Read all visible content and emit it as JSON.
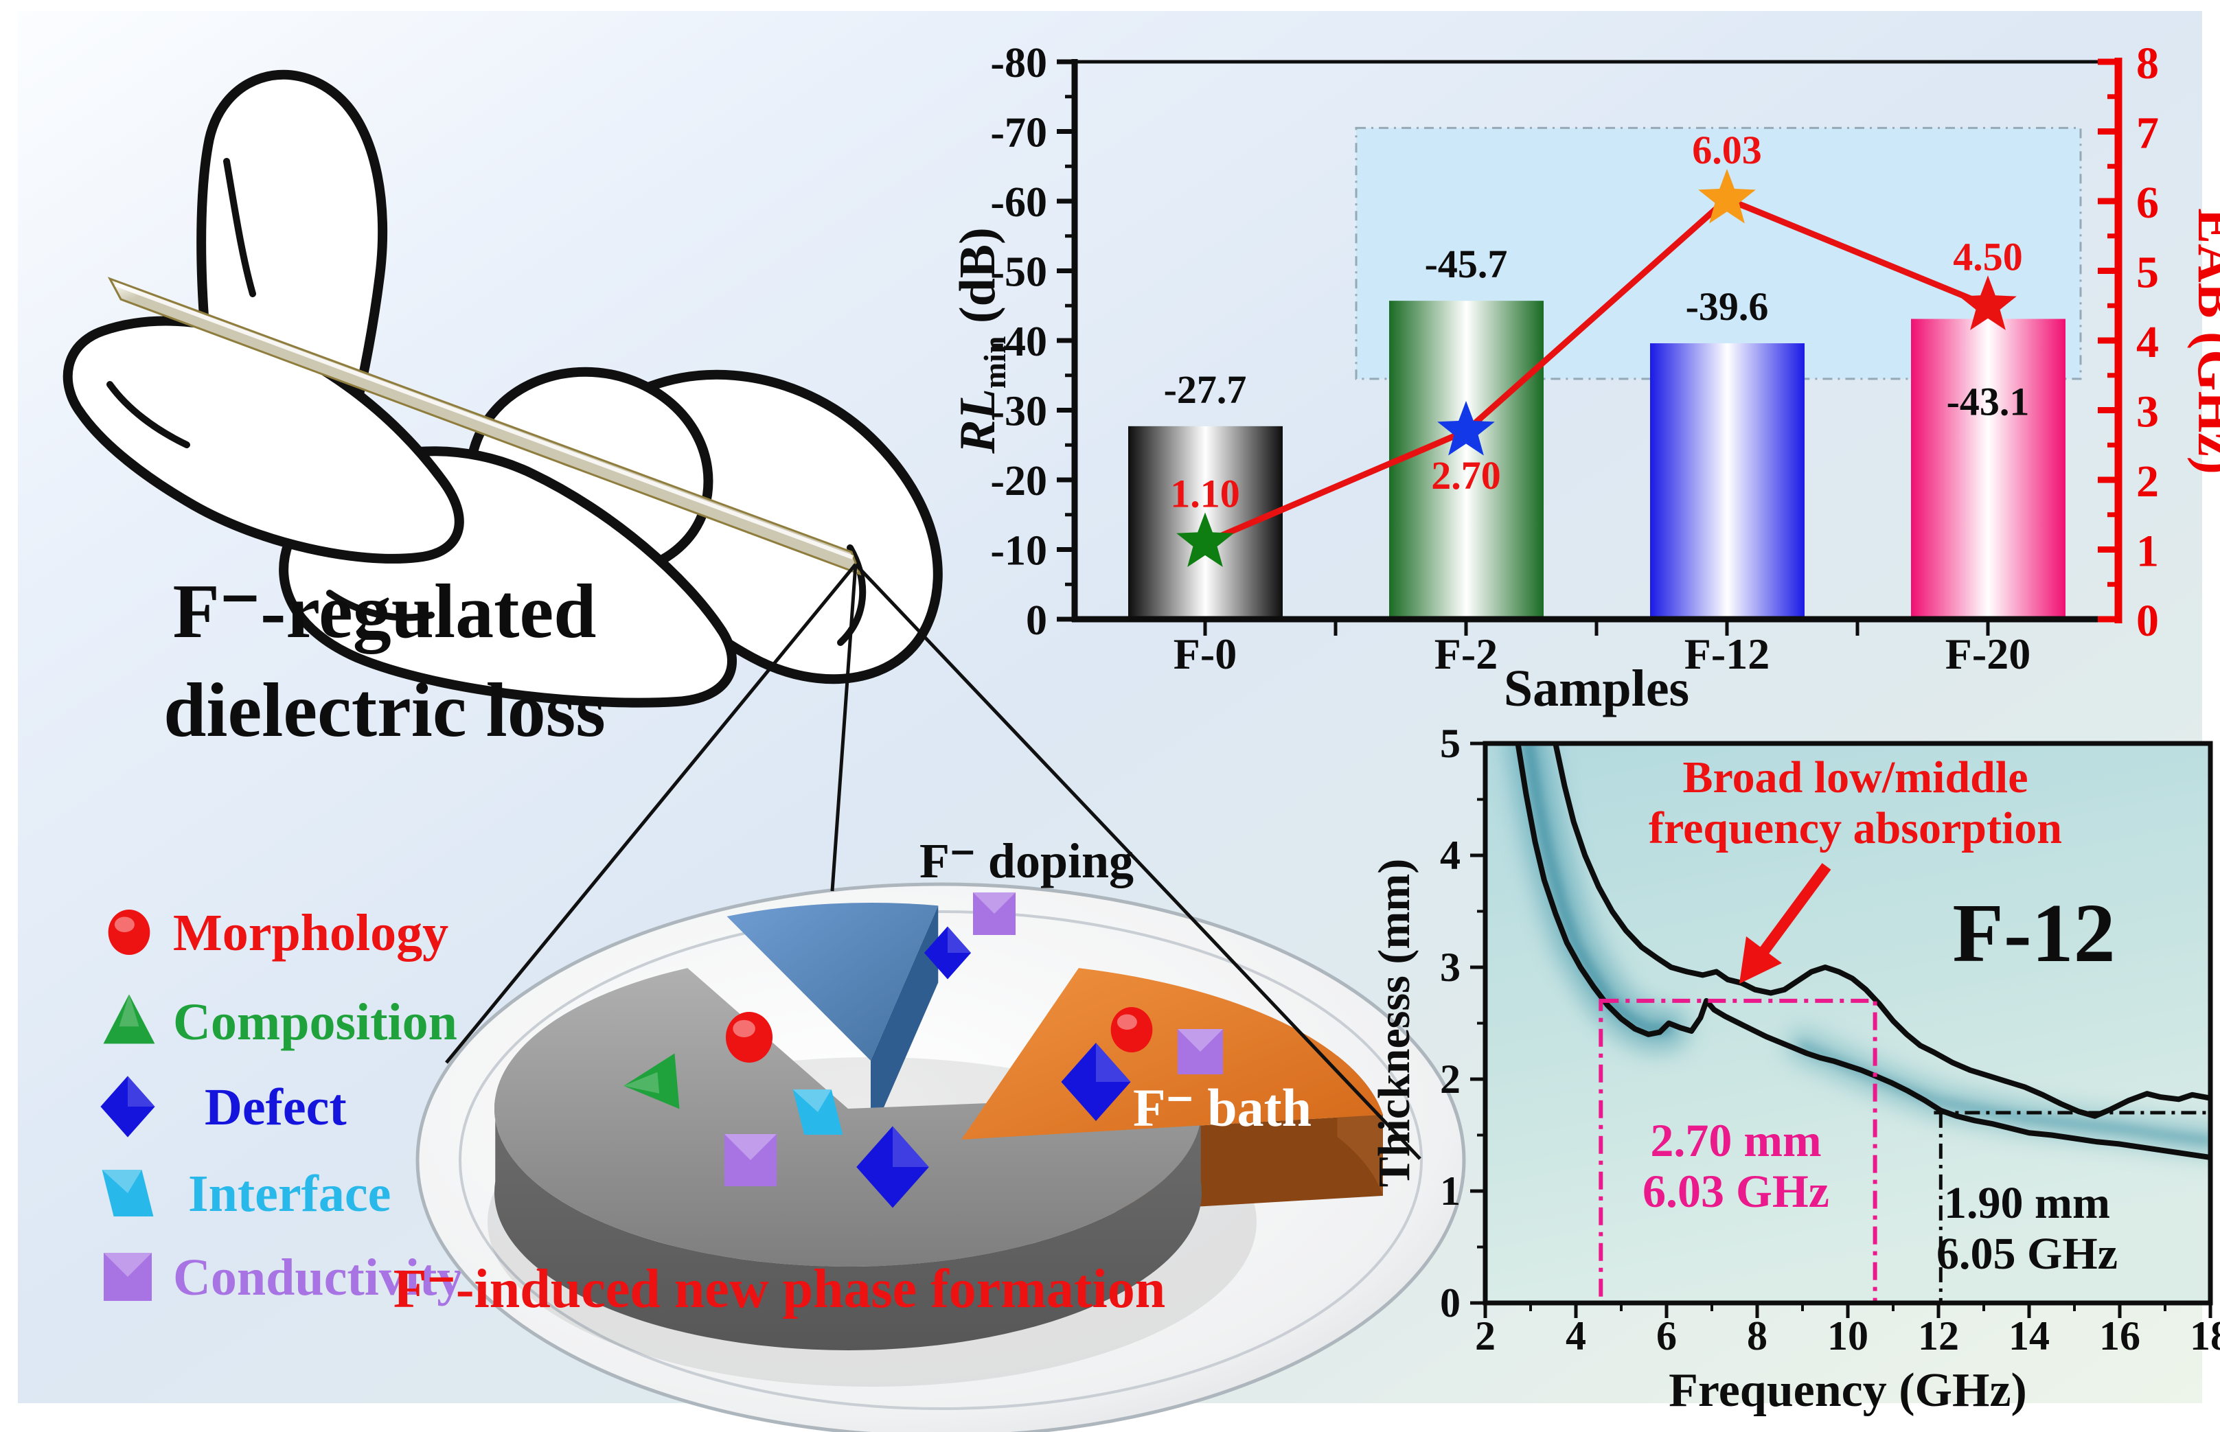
{
  "title": {
    "line1": "F⁻-regulated",
    "line2": "dielectric loss"
  },
  "legend": {
    "items": [
      {
        "label": "Morphology",
        "marker": "circle",
        "color": "#ee1313"
      },
      {
        "label": "Composition",
        "marker": "triangle",
        "color": "#1fa23c"
      },
      {
        "label": "Defect",
        "marker": "diamond",
        "color": "#1414dd"
      },
      {
        "label": "Interface",
        "marker": "parallelogram",
        "color": "#29b8ea"
      },
      {
        "label": "Conductivity",
        "marker": "square",
        "color": "#a873e2"
      }
    ]
  },
  "pie": {
    "labels": {
      "doping": "F⁻ doping",
      "bath": "F⁻ bath",
      "new_phase": "F⁻-induced new phase formation"
    },
    "slices": [
      {
        "name": "F⁻-induced new phase formation",
        "color": "#9a9a9a",
        "share": 0.69
      },
      {
        "name": "F⁻ doping",
        "color": "#5b8ec8",
        "share": 0.1
      },
      {
        "name": "F⁻ bath",
        "color": "#e07a28",
        "share": 0.21
      }
    ]
  },
  "chart_data": [
    {
      "type": "bar",
      "categories": [
        "F-0",
        "F-2",
        "F-12",
        "F-20"
      ],
      "xlabel": "Samples",
      "series": [
        {
          "name": "RL_min (dB)",
          "axis": "left",
          "values": [
            -27.7,
            -45.7,
            -39.6,
            -43.1
          ],
          "labels": [
            "-27.7",
            "-45.7",
            "-39.6",
            "-43.1"
          ],
          "bar_edge_colors": [
            "#0d0d0d",
            "#1a6b24",
            "#1a1ae6",
            "#f00f72"
          ]
        },
        {
          "name": "EAB (GHz)",
          "axis": "right",
          "type": "line+star",
          "values": [
            1.1,
            2.7,
            6.03,
            4.5
          ],
          "labels": [
            "1.10",
            "2.70",
            "6.03",
            "4.50"
          ],
          "star_colors": [
            "#0e7d12",
            "#1238e8",
            "#f79a17",
            "#ea1111"
          ],
          "line_color": "#e81111"
        }
      ],
      "left_axis": {
        "parts": {
          "rl": "RL",
          "sub": "min",
          "unit": " (dB)"
        },
        "min": -80,
        "max": 0,
        "ticks": [
          "-80",
          "-70",
          "-60",
          "-50",
          "-40",
          "-30",
          "-20",
          "-10",
          "0"
        ]
      },
      "right_axis": {
        "label": "EAB (GHz)",
        "min": 0,
        "max": 8,
        "color": "#ee0000",
        "ticks": [
          "0",
          "1",
          "2",
          "3",
          "4",
          "5",
          "6",
          "7",
          "8"
        ]
      },
      "highlight_box": {
        "eab_range": [
          3.45,
          7.05
        ]
      }
    },
    {
      "type": "heatmap",
      "inset_label": "F-12",
      "xlabel": "Frequency (GHz)",
      "ylabel": "Thicknesss (mm)",
      "xlim": [
        2,
        18
      ],
      "ylim": [
        0,
        5
      ],
      "x_ticks": [
        "2",
        "4",
        "6",
        "8",
        "10",
        "12",
        "14",
        "16",
        "18"
      ],
      "y_ticks": [
        "0",
        "1",
        "2",
        "3",
        "4",
        "5"
      ],
      "annotations": {
        "arrow_note": {
          "line1": "Broad low/middle",
          "line2": "frequency absorption",
          "color": "#ee1111"
        },
        "magenta_note": {
          "line1": "2.70 mm",
          "line2": "6.03 GHz",
          "color": "#ea1a8c",
          "box_x": [
            4.55,
            10.6
          ],
          "box_y": [
            0,
            2.7
          ]
        },
        "black_note": {
          "line1": "1.90 mm",
          "line2": "6.05 GHz",
          "h_line_y": 1.7,
          "v_line_x": 12.05
        }
      },
      "contours": {
        "upper": [
          [
            3.55,
            5.0
          ],
          [
            3.75,
            4.62
          ],
          [
            3.95,
            4.3
          ],
          [
            4.2,
            4.0
          ],
          [
            4.5,
            3.72
          ],
          [
            4.8,
            3.5
          ],
          [
            5.1,
            3.33
          ],
          [
            5.45,
            3.18
          ],
          [
            5.8,
            3.08
          ],
          [
            6.1,
            3.0
          ],
          [
            6.45,
            2.96
          ],
          [
            6.8,
            2.93
          ],
          [
            7.1,
            2.96
          ],
          [
            7.35,
            2.89
          ],
          [
            7.65,
            2.86
          ],
          [
            7.95,
            2.8
          ],
          [
            8.3,
            2.77
          ],
          [
            8.6,
            2.8
          ],
          [
            8.9,
            2.88
          ],
          [
            9.2,
            2.96
          ],
          [
            9.5,
            3.0
          ],
          [
            9.8,
            2.96
          ],
          [
            10.1,
            2.9
          ],
          [
            10.4,
            2.8
          ],
          [
            10.7,
            2.67
          ],
          [
            11.0,
            2.52
          ],
          [
            11.3,
            2.4
          ],
          [
            11.6,
            2.3
          ],
          [
            11.9,
            2.24
          ],
          [
            12.3,
            2.15
          ],
          [
            12.7,
            2.08
          ],
          [
            13.1,
            2.03
          ],
          [
            13.5,
            1.98
          ],
          [
            13.9,
            1.93
          ],
          [
            14.3,
            1.86
          ],
          [
            14.7,
            1.78
          ],
          [
            15.1,
            1.71
          ],
          [
            15.45,
            1.67
          ],
          [
            15.8,
            1.73
          ],
          [
            16.2,
            1.81
          ],
          [
            16.6,
            1.87
          ],
          [
            16.9,
            1.84
          ],
          [
            17.3,
            1.82
          ],
          [
            17.6,
            1.86
          ],
          [
            18,
            1.83
          ]
        ],
        "lower": [
          [
            2.72,
            5.0
          ],
          [
            2.9,
            4.55
          ],
          [
            3.1,
            4.12
          ],
          [
            3.3,
            3.78
          ],
          [
            3.55,
            3.48
          ],
          [
            3.8,
            3.22
          ],
          [
            4.1,
            3.0
          ],
          [
            4.4,
            2.82
          ],
          [
            4.7,
            2.66
          ],
          [
            5.0,
            2.54
          ],
          [
            5.3,
            2.45
          ],
          [
            5.6,
            2.4
          ],
          [
            5.85,
            2.42
          ],
          [
            6.05,
            2.5
          ],
          [
            6.3,
            2.46
          ],
          [
            6.55,
            2.43
          ],
          [
            6.75,
            2.55
          ],
          [
            6.88,
            2.7
          ],
          [
            7.05,
            2.62
          ],
          [
            7.3,
            2.56
          ],
          [
            7.6,
            2.5
          ],
          [
            7.9,
            2.44
          ],
          [
            8.2,
            2.38
          ],
          [
            8.5,
            2.33
          ],
          [
            8.8,
            2.28
          ],
          [
            9.1,
            2.23
          ],
          [
            9.4,
            2.19
          ],
          [
            9.7,
            2.16
          ],
          [
            10.0,
            2.12
          ],
          [
            10.3,
            2.08
          ],
          [
            10.6,
            2.03
          ],
          [
            10.95,
            1.97
          ],
          [
            11.3,
            1.9
          ],
          [
            11.7,
            1.81
          ],
          [
            12.05,
            1.72
          ],
          [
            12.4,
            1.67
          ],
          [
            12.8,
            1.63
          ],
          [
            13.2,
            1.6
          ],
          [
            13.6,
            1.56
          ],
          [
            14.0,
            1.52
          ],
          [
            14.5,
            1.5
          ],
          [
            15.0,
            1.47
          ],
          [
            15.5,
            1.44
          ],
          [
            16.0,
            1.42
          ],
          [
            16.5,
            1.39
          ],
          [
            17.0,
            1.36
          ],
          [
            17.5,
            1.33
          ],
          [
            18,
            1.3
          ]
        ]
      }
    }
  ]
}
